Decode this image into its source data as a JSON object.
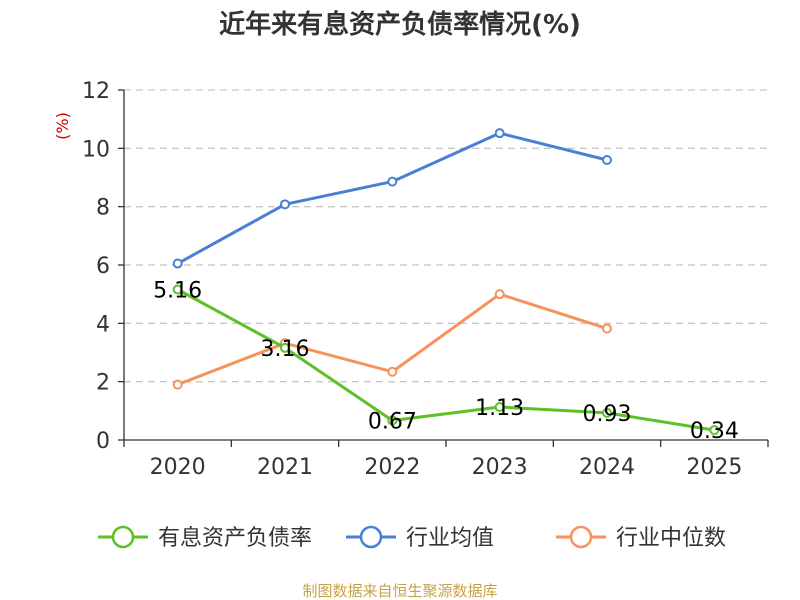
{
  "chart_data": {
    "type": "line",
    "title": "近年来有息资产负债率情况(%)",
    "ylabel": "(%)",
    "categories": [
      "2020",
      "2021",
      "2022",
      "2023",
      "2024",
      "2025"
    ],
    "ylim": [
      0,
      12
    ],
    "yticks": [
      0,
      2,
      4,
      6,
      8,
      10,
      12
    ],
    "grid": true,
    "legend_position": "bottom",
    "series": [
      {
        "name": "有息资产负债率",
        "color": "#5cc126",
        "values": [
          5.16,
          3.16,
          0.67,
          1.13,
          0.93,
          0.34
        ],
        "labels": [
          "5.16",
          "3.16",
          "0.67",
          "1.13",
          "0.93",
          "0.34"
        ]
      },
      {
        "name": "行业均值",
        "color": "#4a7fd6",
        "values": [
          6.05,
          8.08,
          8.86,
          10.52,
          9.6,
          null
        ]
      },
      {
        "name": "行业中位数",
        "color": "#f7925d",
        "values": [
          1.9,
          3.32,
          2.34,
          5.0,
          3.82,
          null
        ]
      }
    ]
  },
  "source": "制图数据来自恒生聚源数据库"
}
